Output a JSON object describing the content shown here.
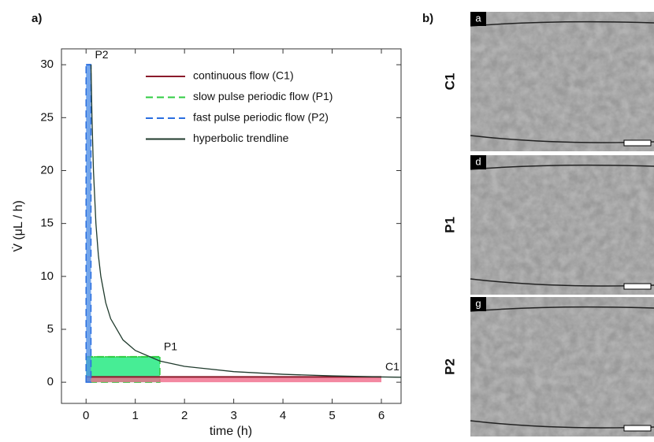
{
  "chart_data": {
    "type": "area",
    "panel_label": "a)",
    "x_label": "time (h)",
    "y_label": "V̇ (μL / h)",
    "xlim": [
      -0.5,
      6.4
    ],
    "ylim": [
      -2,
      31.5
    ],
    "xticks": [
      0,
      1,
      2,
      3,
      4,
      5,
      6
    ],
    "yticks": [
      0,
      5,
      10,
      15,
      20,
      25,
      30
    ],
    "legend": "upper right",
    "series": [
      {
        "name": "continuous flow (C1)",
        "color": "#8b1a2b",
        "fill": "#f06a8a",
        "dash": "solid",
        "x": [
          0,
          6
        ],
        "values": [
          0.5,
          0.5
        ]
      },
      {
        "name": "slow pulse periodic flow (P1)",
        "color": "#2ecc40",
        "fill": "#19e87a",
        "dash": "dashed",
        "x": [
          0,
          1.5
        ],
        "values": [
          2.4,
          2.4
        ]
      },
      {
        "name": "fast pulse periodic flow (P2)",
        "color": "#2a6ee0",
        "fill": "#4f8fe6",
        "dash": "dashed",
        "x": [
          0,
          0.1
        ],
        "values": [
          30,
          30
        ]
      },
      {
        "name": "hyperbolic trendline",
        "color": "#1f3a2c",
        "fill": null,
        "dash": "solid",
        "x": [
          0.1,
          0.12,
          0.15,
          0.2,
          0.25,
          0.3,
          0.4,
          0.5,
          0.75,
          1,
          1.5,
          2,
          3,
          4,
          5,
          6,
          6.4
        ],
        "values": [
          30,
          25,
          20,
          15,
          12,
          10,
          7.5,
          6,
          4,
          3,
          2,
          1.5,
          1,
          0.75,
          0.6,
          0.5,
          0.47
        ]
      }
    ],
    "annotations": [
      {
        "text": "P2",
        "x": 0.1,
        "y": 30
      },
      {
        "text": "P1",
        "x": 1.5,
        "y": 2.4
      },
      {
        "text": "C1",
        "x": 6,
        "y": 0.5
      }
    ]
  },
  "panel_b": {
    "label": "b)",
    "rows": [
      {
        "name": "C1",
        "tag": "a"
      },
      {
        "name": "P1",
        "tag": "d"
      },
      {
        "name": "P2",
        "tag": "g"
      }
    ]
  }
}
